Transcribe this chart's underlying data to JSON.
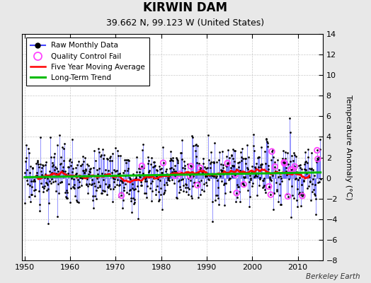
{
  "title": "KIRWIN DAM",
  "subtitle": "39.662 N, 99.123 W (United States)",
  "ylabel": "Temperature Anomaly (°C)",
  "credit": "Berkeley Earth",
  "xlim": [
    1949.5,
    2015.5
  ],
  "ylim": [
    -8,
    14
  ],
  "yticks": [
    -8,
    -6,
    -4,
    -2,
    0,
    2,
    4,
    6,
    8,
    10,
    12,
    14
  ],
  "xticks": [
    1950,
    1960,
    1970,
    1980,
    1990,
    2000,
    2010
  ],
  "bg_color": "#e8e8e8",
  "plot_bg": "#ffffff",
  "line_color": "#4444ff",
  "marker_color": "#000000",
  "qc_color": "#ff44ff",
  "ma_color": "#ff0000",
  "trend_color": "#00bb00",
  "seed": 17,
  "n_months": 780,
  "start_year": 1950,
  "end_year": 2015,
  "ma_window": 60
}
